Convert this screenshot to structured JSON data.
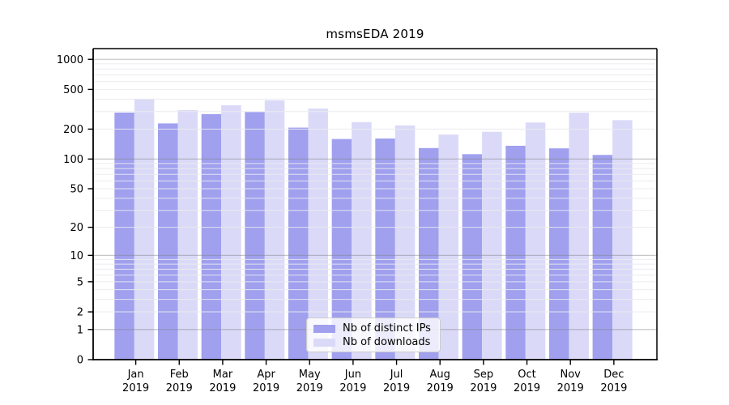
{
  "chart_data": {
    "type": "bar",
    "title": "msmsEDA 2019",
    "categories": [
      "Jan 2019",
      "Feb 2019",
      "Mar 2019",
      "Apr 2019",
      "May 2019",
      "Jun 2019",
      "Jul 2019",
      "Aug 2019",
      "Sep 2019",
      "Oct 2019",
      "Nov 2019",
      "Dec 2019"
    ],
    "series": [
      {
        "name": "Nb of distinct IPs",
        "color": "#a0a0ef",
        "values": [
          293,
          228,
          283,
          297,
          207,
          159,
          161,
          129,
          112,
          136,
          128,
          110
        ]
      },
      {
        "name": "Nb of downloads",
        "color": "#dadaf8",
        "values": [
          400,
          310,
          347,
          389,
          322,
          235,
          218,
          176,
          188,
          233,
          292,
          246
        ]
      }
    ],
    "yscale": "log1p",
    "yticks": [
      0,
      1,
      2,
      5,
      10,
      20,
      50,
      100,
      200,
      500,
      1000
    ],
    "ylim": [
      0,
      1000
    ],
    "grid": true,
    "major_grid_values": [
      1,
      10,
      100,
      1000
    ],
    "minor_grid_values": [
      2,
      3,
      4,
      5,
      6,
      7,
      8,
      9,
      20,
      30,
      40,
      50,
      60,
      70,
      80,
      90,
      200,
      300,
      400,
      500,
      600,
      700,
      800,
      900
    ],
    "legend_position": "lower center",
    "colors": {
      "axis": "#000000",
      "tick_label": "#000000",
      "major_grid": "rgba(128,128,133,0.5)",
      "minor_grid": "rgba(234,234,240,0.9)",
      "background": "#ffffff"
    }
  }
}
